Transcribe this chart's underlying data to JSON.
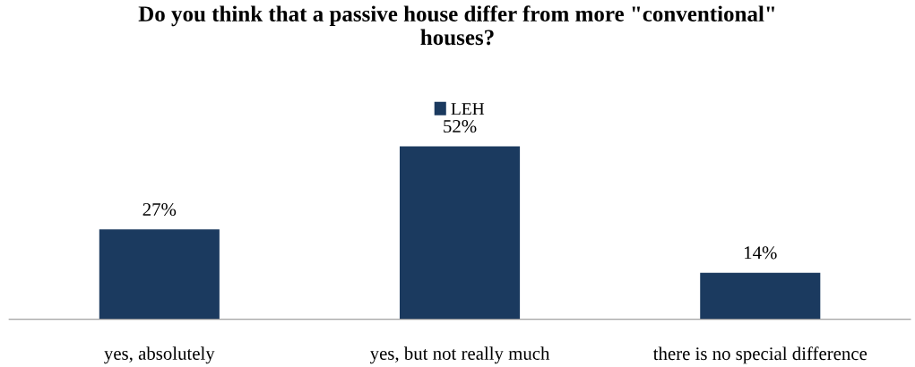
{
  "chart_data": {
    "type": "bar",
    "title": "Do you think that a passive house differ from more \"conventional\"\nhouses?",
    "categories": [
      "yes, absolutely",
      "yes, but not really much",
      "there is no special difference"
    ],
    "series": [
      {
        "name": "LEH",
        "color": "#1b3a5f",
        "values": [
          27,
          52,
          14
        ],
        "value_labels": [
          "27%",
          "52%",
          "14%"
        ]
      }
    ],
    "tick_labels": "x",
    "grid": false,
    "legend": "top"
  }
}
